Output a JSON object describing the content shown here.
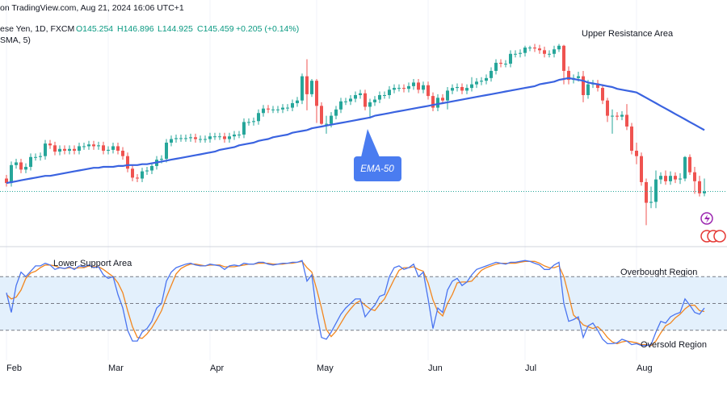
{
  "chart_data": {
    "type": "candlestick",
    "title": "on TradingView.com, Aug 21, 2024 16:06 UTC+1",
    "symbol": "ese Yen, 1D, FXCM",
    "ohlc": [
      "O145.254",
      "H146.896",
      "L144.925",
      "C145.459",
      "+0.205 (+0.14%)"
    ],
    "indicator": "SMA, 5)",
    "categories": [
      "Feb",
      null,
      null,
      null,
      null,
      null,
      null,
      null,
      null,
      null,
      null,
      null,
      null,
      null,
      null,
      null,
      null,
      null,
      null,
      null,
      null,
      "Mar",
      null,
      null,
      null,
      null,
      null,
      null,
      null,
      null,
      null,
      null,
      null,
      null,
      null,
      null,
      null,
      null,
      null,
      null,
      null,
      null,
      "Apr",
      null,
      null,
      null,
      null,
      null,
      null,
      null,
      null,
      null,
      null,
      null,
      null,
      null,
      null,
      null,
      null,
      null,
      null,
      null,
      null,
      null,
      "May",
      null,
      null,
      null,
      null,
      null,
      null,
      null,
      null,
      null,
      null,
      null,
      null,
      null,
      null,
      null,
      null,
      null,
      null,
      null,
      null,
      null,
      null,
      "Jun",
      null,
      null,
      null,
      null,
      null,
      null,
      null,
      null,
      null,
      null,
      null,
      null,
      null,
      null,
      null,
      null,
      null,
      null,
      null,
      "Jul",
      null,
      null,
      null,
      null,
      null,
      null,
      null,
      null,
      null,
      null,
      null,
      null,
      null,
      null,
      null,
      null,
      null,
      null,
      null,
      null,
      null,
      null,
      "Aug",
      null,
      null,
      null,
      null,
      null,
      null,
      null,
      null,
      null,
      null,
      null,
      null,
      null,
      null
    ],
    "open": [
      146.9,
      146.4,
      148.4,
      148.7,
      147.9,
      148.2,
      149.3,
      149.3,
      149.4,
      150.8,
      150.6,
      149.9,
      150.2,
      150.0,
      150.2,
      150.0,
      150.5,
      150.5,
      150.7,
      150.5,
      150.6,
      150.0,
      150.1,
      150.5,
      150.0,
      149.4,
      148.0,
      147.0,
      146.9,
      147.7,
      147.8,
      148.3,
      149.0,
      149.1,
      150.9,
      151.3,
      151.4,
      151.4,
      151.4,
      151.5,
      151.3,
      151.3,
      151.3,
      151.6,
      151.6,
      151.6,
      151.3,
      151.6,
      151.8,
      151.8,
      153.2,
      153.2,
      153.3,
      154.2,
      154.7,
      154.6,
      154.6,
      154.6,
      154.8,
      154.8,
      155.3,
      155.6,
      158.3,
      156.3,
      157.8,
      155.0,
      153.0,
      153.0,
      153.9,
      154.6,
      155.5,
      155.5,
      155.8,
      156.2,
      156.4,
      154.9,
      155.4,
      155.7,
      156.2,
      156.2,
      156.8,
      157.0,
      157.0,
      156.9,
      157.2,
      157.6,
      156.8,
      157.3,
      156.1,
      154.8,
      155.9,
      155.6,
      156.7,
      157.0,
      157.1,
      156.7,
      157.0,
      157.4,
      157.7,
      157.8,
      158.1,
      158.9,
      159.8,
      159.7,
      159.7,
      160.8,
      160.8,
      160.9,
      161.5,
      161.5,
      161.4,
      161.2,
      160.8,
      160.8,
      161.3,
      161.7,
      158.9,
      157.9,
      158.1,
      158.3,
      156.2,
      157.4,
      157.5,
      157.0,
      155.6,
      153.9,
      153.9,
      153.8,
      154.0,
      152.7,
      150.0,
      149.4,
      146.5,
      144.2,
      144.3,
      146.8,
      147.2,
      146.6,
      147.2,
      146.8,
      146.9,
      149.3,
      147.6,
      146.6,
      145.254
    ],
    "high": [
      147.3,
      148.8,
      149.1,
      149.1,
      148.6,
      149.7,
      149.7,
      149.8,
      151.2,
      151.2,
      151.0,
      150.6,
      150.6,
      150.6,
      150.6,
      150.9,
      150.9,
      151.1,
      151.1,
      151.0,
      151.0,
      150.5,
      150.9,
      150.9,
      150.4,
      149.8,
      148.4,
      147.4,
      148.1,
      148.2,
      148.7,
      149.4,
      149.5,
      151.3,
      151.7,
      151.8,
      151.8,
      151.8,
      151.9,
      151.9,
      151.7,
      151.7,
      152.0,
      152.0,
      152.0,
      152.0,
      152.0,
      152.2,
      152.2,
      153.6,
      153.6,
      153.7,
      154.6,
      155.1,
      155.1,
      155.0,
      155.0,
      155.2,
      155.2,
      155.7,
      156.0,
      158.6,
      160.2,
      158.0,
      158.0,
      155.4,
      153.9,
      154.3,
      155.0,
      155.9,
      155.9,
      156.2,
      156.6,
      156.8,
      156.8,
      155.8,
      156.1,
      156.6,
      156.6,
      157.2,
      157.4,
      157.4,
      157.4,
      157.6,
      158.0,
      158.0,
      157.7,
      157.7,
      156.5,
      156.3,
      156.3,
      157.1,
      157.4,
      157.5,
      157.5,
      157.4,
      158.2,
      158.1,
      158.2,
      158.5,
      159.3,
      160.2,
      160.2,
      160.1,
      161.2,
      161.2,
      161.3,
      161.7,
      161.7,
      161.9,
      161.8,
      161.6,
      161.2,
      161.7,
      161.9,
      161.8,
      159.4,
      158.5,
      158.8,
      158.9,
      157.9,
      157.9,
      157.9,
      157.4,
      155.9,
      154.6,
      154.3,
      154.4,
      155.2,
      153.1,
      150.9,
      149.8,
      146.9,
      146.0,
      147.8,
      147.6,
      147.8,
      147.7,
      147.6,
      147.5,
      149.4,
      149.6,
      148.2,
      147.2,
      146.896
    ],
    "low": [
      146.0,
      146.0,
      148.0,
      147.5,
      147.5,
      147.8,
      148.9,
      148.9,
      149.0,
      150.2,
      149.5,
      149.5,
      149.6,
      149.6,
      149.6,
      149.6,
      150.1,
      150.1,
      150.1,
      150.1,
      149.6,
      149.6,
      149.7,
      149.6,
      149.0,
      147.6,
      146.6,
      146.5,
      146.5,
      147.3,
      147.4,
      147.9,
      148.6,
      148.7,
      150.5,
      150.9,
      151.0,
      151.0,
      151.0,
      150.9,
      150.9,
      150.9,
      150.9,
      151.2,
      151.2,
      150.9,
      150.9,
      151.2,
      151.4,
      151.4,
      152.8,
      152.8,
      152.9,
      153.8,
      154.2,
      154.2,
      154.2,
      154.2,
      154.4,
      154.4,
      154.9,
      155.2,
      154.5,
      156.0,
      153.1,
      152.9,
      151.9,
      152.6,
      153.5,
      154.2,
      155.1,
      155.1,
      155.4,
      155.8,
      154.5,
      153.6,
      155.0,
      155.3,
      155.8,
      155.8,
      156.4,
      156.6,
      156.5,
      156.5,
      156.8,
      156.4,
      156.4,
      155.7,
      154.4,
      154.4,
      155.2,
      154.6,
      156.3,
      156.6,
      156.3,
      156.3,
      156.6,
      157.0,
      157.3,
      157.4,
      157.7,
      158.5,
      159.3,
      159.3,
      159.3,
      160.4,
      160.4,
      160.5,
      161.1,
      161.0,
      160.8,
      160.4,
      160.4,
      160.4,
      161.0,
      157.4,
      157.4,
      157.5,
      157.7,
      155.4,
      155.8,
      157.0,
      156.6,
      155.2,
      153.2,
      151.9,
      153.4,
      153.4,
      152.3,
      149.6,
      148.5,
      146.1,
      141.7,
      143.6,
      143.6,
      146.3,
      146.2,
      146.2,
      146.4,
      146.3,
      146.6,
      147.3,
      145.2,
      144.9,
      144.925
    ],
    "close": [
      146.4,
      148.4,
      148.7,
      147.9,
      148.2,
      149.3,
      149.3,
      149.4,
      150.8,
      150.6,
      149.9,
      150.2,
      150.0,
      150.2,
      150.0,
      150.5,
      150.5,
      150.7,
      150.5,
      150.6,
      150.0,
      150.1,
      150.5,
      150.0,
      149.4,
      148.0,
      147.0,
      146.9,
      147.7,
      147.8,
      148.3,
      149.0,
      149.1,
      150.9,
      151.3,
      151.4,
      151.4,
      151.4,
      151.5,
      151.3,
      151.3,
      151.3,
      151.6,
      151.6,
      151.6,
      151.3,
      151.6,
      151.8,
      151.8,
      153.2,
      153.2,
      153.3,
      154.2,
      154.7,
      154.6,
      154.6,
      154.6,
      154.8,
      154.8,
      155.3,
      155.6,
      158.3,
      156.3,
      157.8,
      155.0,
      153.0,
      153.0,
      153.9,
      154.6,
      155.5,
      155.5,
      155.8,
      156.2,
      156.4,
      154.9,
      155.4,
      155.7,
      156.2,
      156.2,
      156.8,
      157.0,
      157.0,
      156.9,
      157.2,
      157.6,
      156.8,
      157.3,
      156.1,
      154.8,
      155.9,
      155.6,
      156.7,
      157.0,
      157.1,
      156.7,
      157.0,
      157.4,
      157.7,
      157.8,
      158.1,
      158.9,
      159.8,
      159.7,
      159.7,
      160.8,
      160.8,
      160.9,
      161.5,
      161.5,
      161.4,
      161.2,
      160.8,
      160.8,
      161.3,
      161.7,
      158.9,
      157.9,
      158.1,
      158.3,
      156.2,
      157.4,
      157.5,
      157.0,
      155.6,
      153.9,
      153.9,
      153.8,
      154.0,
      152.7,
      150.0,
      149.4,
      146.5,
      144.2,
      144.3,
      146.8,
      147.2,
      146.6,
      147.2,
      146.8,
      146.9,
      149.3,
      147.6,
      146.6,
      145.254,
      145.459
    ],
    "up_color": "#26a69a",
    "down_color": "#ef5350",
    "ylim": [
      139.4,
      166.8
    ],
    "ema": {
      "name": "EMA-50",
      "color": "#3a63e0",
      "values": [
        146.4,
        146.5,
        146.6,
        146.7,
        146.8,
        146.9,
        147.0,
        147.1,
        147.2,
        147.2,
        147.3,
        147.4,
        147.5,
        147.6,
        147.7,
        147.8,
        147.9,
        148.0,
        148.1,
        148.1,
        148.2,
        148.2,
        148.2,
        148.3,
        148.3,
        148.4,
        148.4,
        148.4,
        148.5,
        148.5,
        148.6,
        148.7,
        148.8,
        148.9,
        149.0,
        149.1,
        149.2,
        149.3,
        149.4,
        149.5,
        149.6,
        149.7,
        149.8,
        149.9,
        150.1,
        150.2,
        150.3,
        150.4,
        150.6,
        150.7,
        150.8,
        150.9,
        151.1,
        151.2,
        151.3,
        151.5,
        151.6,
        151.7,
        151.8,
        152.0,
        152.1,
        152.2,
        152.3,
        152.5,
        152.6,
        152.7,
        152.8,
        152.9,
        153.0,
        153.1,
        153.2,
        153.3,
        153.4,
        153.5,
        153.6,
        153.7,
        153.9,
        154.0,
        154.1,
        154.2,
        154.3,
        154.4,
        154.5,
        154.6,
        154.7,
        154.8,
        154.9,
        155.0,
        155.1,
        155.2,
        155.3,
        155.4,
        155.5,
        155.6,
        155.7,
        155.8,
        155.9,
        156.0,
        156.1,
        156.2,
        156.3,
        156.4,
        156.5,
        156.6,
        156.7,
        156.8,
        156.9,
        157.0,
        157.1,
        157.2,
        157.4,
        157.5,
        157.6,
        157.7,
        157.9,
        158.0,
        158.1,
        158.0,
        157.9,
        157.8,
        157.6,
        157.5,
        157.4,
        157.3,
        157.2,
        157.1,
        156.9,
        156.8,
        156.7,
        156.6,
        156.5,
        156.2,
        155.9,
        155.6,
        155.3,
        155.0,
        154.7,
        154.4,
        154.1,
        153.8,
        153.5,
        153.2,
        152.9,
        152.6,
        152.3
      ]
    },
    "stochastic": {
      "ylim": [
        0,
        100
      ],
      "levels": [
        80,
        50,
        20
      ],
      "band_color": "#e3f0fc",
      "k": {
        "color": "#4a74f0",
        "values": [
          62,
          40,
          70,
          85,
          80,
          86,
          92,
          92,
          95,
          93,
          88,
          90,
          89,
          91,
          88,
          92,
          91,
          93,
          90,
          91,
          82,
          78,
          80,
          60,
          45,
          20,
          8,
          8,
          18,
          22,
          30,
          45,
          50,
          75,
          85,
          90,
          92,
          94,
          95,
          93,
          92,
          92,
          94,
          93,
          92,
          88,
          92,
          93,
          92,
          95,
          94,
          94,
          96,
          96,
          94,
          93,
          94,
          95,
          95,
          96,
          96,
          98,
          75,
          82,
          40,
          12,
          10,
          18,
          28,
          38,
          45,
          50,
          55,
          55,
          35,
          42,
          48,
          58,
          60,
          80,
          90,
          92,
          88,
          90,
          94,
          80,
          85,
          55,
          22,
          45,
          40,
          65,
          75,
          78,
          70,
          74,
          82,
          88,
          90,
          92,
          94,
          96,
          95,
          94,
          96,
          96,
          97,
          98,
          97,
          95,
          93,
          88,
          88,
          93,
          96,
          50,
          30,
          32,
          35,
          12,
          25,
          28,
          20,
          10,
          5,
          5,
          6,
          10,
          8,
          4,
          5,
          3,
          3,
          4,
          18,
          30,
          28,
          35,
          38,
          40,
          55,
          48,
          40,
          38,
          45
        ]
      },
      "d": {
        "color": "#f2861e",
        "values": [
          60,
          55,
          57,
          65,
          78,
          84,
          86,
          90,
          93,
          93,
          92,
          90,
          89,
          90,
          89,
          90,
          90,
          92,
          91,
          91,
          88,
          84,
          80,
          73,
          62,
          42,
          24,
          12,
          11,
          16,
          23,
          32,
          42,
          57,
          70,
          83,
          89,
          92,
          94,
          94,
          93,
          92,
          93,
          93,
          93,
          91,
          91,
          91,
          92,
          93,
          94,
          94,
          95,
          95,
          95,
          94,
          94,
          94,
          95,
          95,
          96,
          97,
          90,
          85,
          66,
          45,
          21,
          13,
          19,
          28,
          37,
          44,
          50,
          53,
          48,
          44,
          42,
          49,
          55,
          66,
          77,
          87,
          90,
          90,
          91,
          88,
          86,
          73,
          54,
          41,
          36,
          50,
          60,
          73,
          74,
          74,
          75,
          81,
          87,
          90,
          92,
          94,
          95,
          95,
          95,
          95,
          96,
          97,
          97,
          97,
          95,
          92,
          90,
          90,
          92,
          80,
          59,
          37,
          32,
          26,
          24,
          22,
          24,
          19,
          12,
          7,
          5,
          7,
          8,
          7,
          6,
          4,
          4,
          3,
          8,
          17,
          25,
          28,
          34,
          38,
          44,
          48,
          48,
          42,
          41
        ]
      }
    },
    "annotations": [
      "Upper Resistance Area",
      "Lower Support Area",
      "Overbought Region",
      "Oversold Region"
    ],
    "grid": true
  }
}
